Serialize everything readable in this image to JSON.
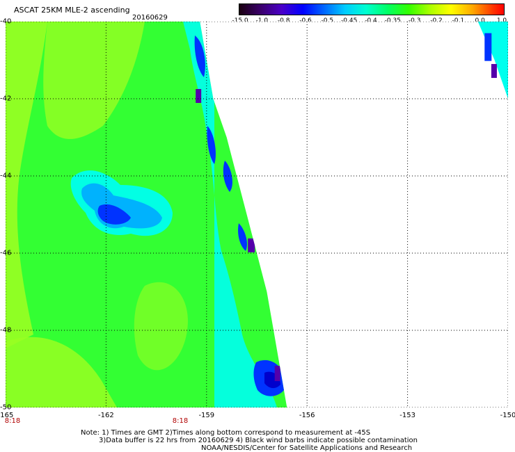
{
  "header": {
    "title": "ASCAT 25KM MLE-2 ascending",
    "date": "20160629"
  },
  "colorbar": {
    "labels": [
      "-15.0",
      "-1.0",
      "-0.8",
      "-0.6",
      "-0.5",
      "-0.45",
      "-0.4",
      "-0.35",
      "-0.3",
      "-0.2",
      "-0.1",
      "0.0",
      "1.0"
    ]
  },
  "axes": {
    "x_ticks": [
      "-165",
      "-162",
      "-159",
      "-156",
      "-153",
      "-150"
    ],
    "y_ticks": [
      "-40",
      "-42",
      "-44",
      "-46",
      "-48",
      "-50"
    ],
    "times": [
      "8:18",
      "8:18"
    ]
  },
  "notes": {
    "line1": "Note: 1) Times are GMT 2)Times along bottom correspond to measurement at -45S",
    "line2": "3)Data buffer is 22 hrs from 20160629 4) Black wind barbs indicate possible contamination",
    "line3": "NOAA/NESDIS/Center for Satellite Applications and Research"
  },
  "chart_data": {
    "type": "heatmap",
    "title": "ASCAT 25KM MLE-2 ascending",
    "xlim": [
      -165,
      -150
    ],
    "ylim": [
      -50,
      -40
    ],
    "grid": true,
    "colorscale_levels": [
      -15.0,
      -1.0,
      -0.8,
      -0.6,
      -0.5,
      -0.45,
      -0.4,
      -0.35,
      -0.3,
      -0.2,
      -0.1,
      0.0,
      1.0
    ],
    "colors": {
      "background_field": "#33ff33",
      "yellow_green": "#99ff22",
      "cyan": "#00ffee",
      "blue": "#0033ff",
      "deep_blue": "#0000cc",
      "purple": "#5500aa",
      "grid": "#000000"
    },
    "swath_edge_west": [
      {
        "lat": -40.0,
        "lon": -159.2
      },
      {
        "lat": -41.0,
        "lon": -159.0
      },
      {
        "lat": -42.0,
        "lon": -158.8
      },
      {
        "lat": -43.0,
        "lon": -158.4
      },
      {
        "lat": -44.0,
        "lon": -158.1
      },
      {
        "lat": -45.0,
        "lon": -157.8
      },
      {
        "lat": -46.0,
        "lon": -157.5
      },
      {
        "lat": -47.0,
        "lon": -157.2
      },
      {
        "lat": -48.0,
        "lon": -157.0
      },
      {
        "lat": -49.0,
        "lon": -156.8
      },
      {
        "lat": -50.0,
        "lon": -156.6
      }
    ],
    "swath_edge_east": [
      {
        "lat": -40.0,
        "lon": -150.9
      },
      {
        "lat": -41.0,
        "lon": -150.4
      },
      {
        "lat": -42.0,
        "lon": -150.0
      },
      {
        "lat": -42.6,
        "lon": -150.0
      }
    ]
  }
}
